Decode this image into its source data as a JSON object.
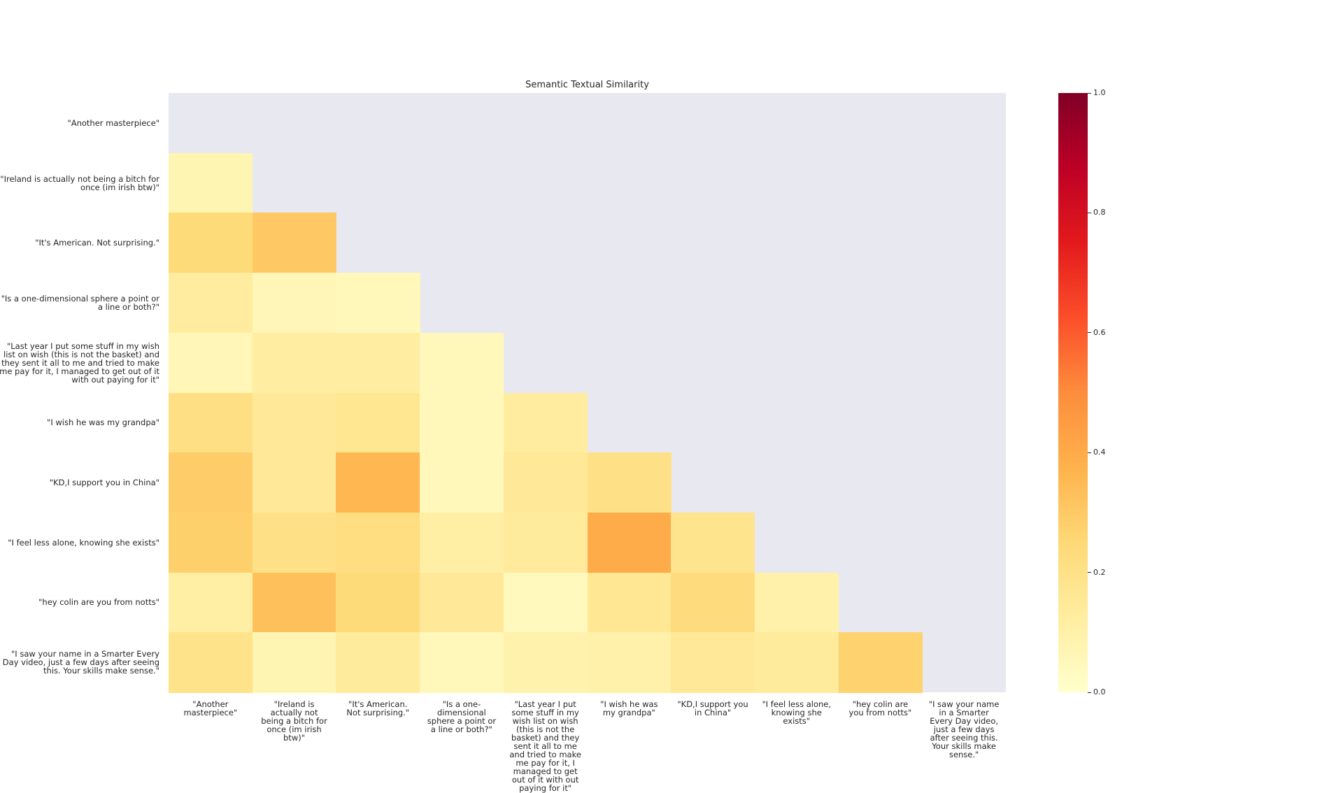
{
  "chart_data": {
    "type": "heatmap",
    "title": "Semantic Textual Similarity",
    "labels": [
      "\"Another masterpiece\"",
      "\"Ireland is actually not being a bitch for once (im irish btw)\"",
      "\"It's American. Not surprising.\"",
      "\"Is a one-dimensional sphere a point or a line or both?\"",
      "\"Last year I put some stuff in my wish list on wish (this is not the basket) and they sent it all to me and tried to make me pay for it, I managed to get out of it with out paying for it\"",
      "\"I wish he was my grandpa\"",
      "\"KD,I support you in China\"",
      "\"I feel less alone, knowing she exists\"",
      "\"hey colin are you from notts\"",
      "\"I saw your name in a Smarter Every Day video, just a few days after seeing this. Your skills make sense.\""
    ],
    "mask": "upper triangle incl. diagonal",
    "values": [
      [],
      [
        0.07
      ],
      [
        0.24,
        0.3
      ],
      [
        0.13,
        0.06,
        0.05
      ],
      [
        0.06,
        0.12,
        0.12,
        0.05
      ],
      [
        0.21,
        0.15,
        0.17,
        0.05,
        0.13
      ],
      [
        0.29,
        0.15,
        0.36,
        0.05,
        0.15,
        0.2
      ],
      [
        0.28,
        0.2,
        0.22,
        0.11,
        0.14,
        0.4,
        0.18
      ],
      [
        0.11,
        0.33,
        0.24,
        0.15,
        0.04,
        0.16,
        0.23,
        0.1
      ],
      [
        0.19,
        0.07,
        0.14,
        0.05,
        0.09,
        0.1,
        0.15,
        0.14,
        0.27
      ]
    ],
    "colormap": "YlOrRd",
    "vmin": 0.0,
    "vmax": 1.0,
    "colorbar_ticks": [
      "0.0",
      "0.2",
      "0.4",
      "0.6",
      "0.8",
      "1.0"
    ],
    "mask_color": "#e8e8f1"
  }
}
